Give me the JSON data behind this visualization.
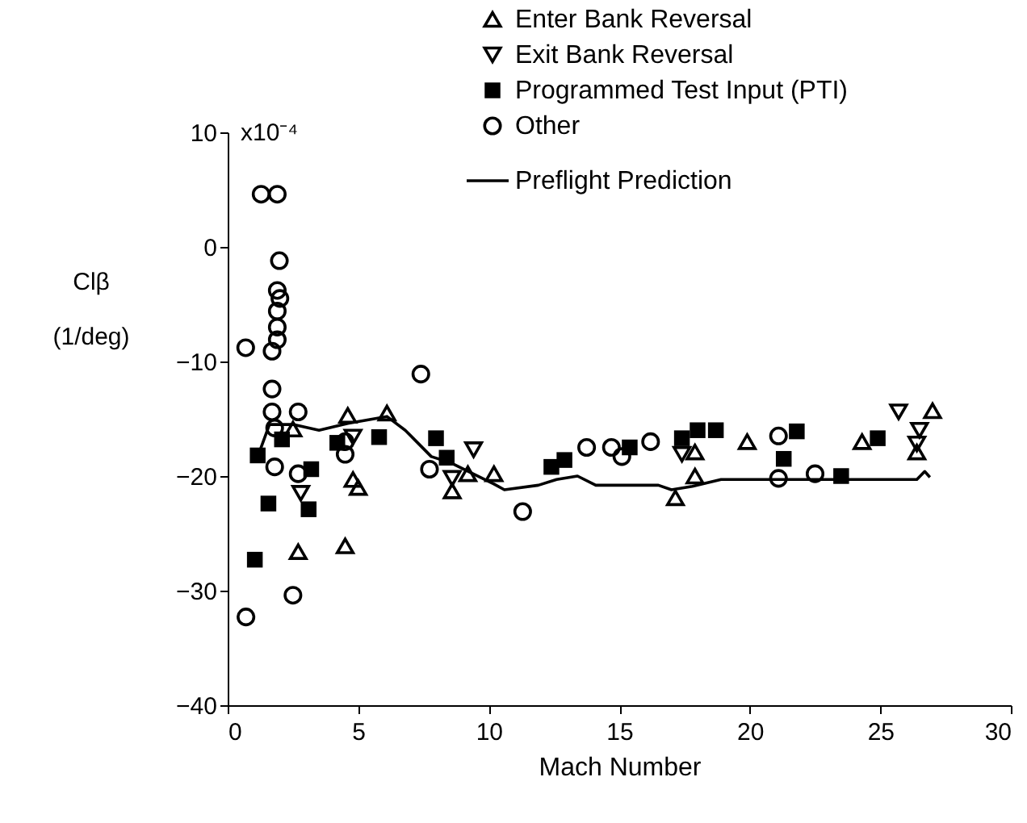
{
  "chart_data": {
    "type": "scatter",
    "xlabel": "Mach Number",
    "ylabel": "Clβ (1/deg)",
    "annotations": [
      "x10⁻⁴"
    ],
    "xlim": [
      0,
      30
    ],
    "xticks": [
      0,
      5,
      10,
      15,
      20,
      25,
      30
    ],
    "ylim": [
      -40,
      10
    ],
    "yticks": [
      -40,
      -30,
      -20,
      -10,
      0,
      10
    ],
    "grid": false,
    "legend": "top right",
    "series": [
      {
        "name": "Enter Bank Reversal",
        "color": "#000000",
        "marker": "triangle",
        "x": [
          2.5,
          2.7,
          4.5,
          4.6,
          6.1,
          4.8,
          5.0,
          8.6,
          9.2,
          10.2,
          17.9,
          17.9,
          17.15,
          19.9,
          24.3,
          27.0,
          26.4
        ],
        "values": [
          -15.9,
          -26.6,
          -26.1,
          -14.7,
          -14.5,
          -20.3,
          -21.0,
          -21.3,
          -19.8,
          -19.8,
          -17.9,
          -20.0,
          -21.9,
          -17.0,
          -17.0,
          -14.3,
          -17.9
        ]
      },
      {
        "name": "Exit Bank Reversal",
        "color": "#000000",
        "marker": "triangle-down",
        "x": [
          2.8,
          4.8,
          9.42,
          8.6,
          17.4,
          25.7,
          26.5,
          26.4
        ],
        "values": [
          -21.5,
          -16.6,
          -17.7,
          -20.2,
          -18.1,
          -14.4,
          -16.0,
          -17.2
        ]
      },
      {
        "name": "Programmed Test Input (PTI)",
        "color": "#000000",
        "marker": "square",
        "x": [
          1.15,
          1.56,
          1.04,
          2.08,
          3.2,
          3.1,
          4.2,
          5.8,
          7.98,
          8.39,
          12.4,
          12.9,
          15.4,
          17.4,
          18.0,
          18.7,
          21.8,
          21.3,
          23.5,
          24.9
        ],
        "values": [
          -18.2,
          -22.4,
          -27.3,
          -16.8,
          -19.4,
          -22.9,
          -17.1,
          -16.6,
          -16.7,
          -18.4,
          -19.2,
          -18.6,
          -17.5,
          -16.7,
          -16.0,
          -16.0,
          -16.1,
          -18.5,
          -20.0,
          -16.7
        ]
      },
      {
        "name": "Other",
        "color": "#000000",
        "marker": "circle",
        "x": [
          1.28,
          1.9,
          1.98,
          0.69,
          1.9,
          2.0,
          1.9,
          1.9,
          1.9,
          1.7,
          1.7,
          1.7,
          1.8,
          2.7,
          1.8,
          2.7,
          4.5,
          4.5,
          2.5,
          0.7,
          7.4,
          7.73,
          11.3,
          13.75,
          14.7,
          15.1,
          16.2,
          21.1,
          21.1,
          22.5
        ],
        "values": [
          4.6,
          4.6,
          -1.2,
          -8.8,
          -3.8,
          -4.5,
          -5.6,
          -7.0,
          -8.1,
          -9.1,
          -12.4,
          -14.4,
          -15.8,
          -14.4,
          -19.2,
          -19.8,
          -18.1,
          -17.0,
          -30.4,
          -32.3,
          -11.1,
          -19.4,
          -23.1,
          -17.5,
          -17.5,
          -18.3,
          -17.0,
          -16.5,
          -20.2,
          -19.8
        ]
      },
      {
        "name": "Preflight Prediction",
        "color": "#000000",
        "type": "line",
        "marker": "none",
        "line_style": "solid",
        "x": [
          1.2,
          1.6,
          2.5,
          3.5,
          4.6,
          6.1,
          6.8,
          7.8,
          8.5,
          10.2,
          10.6,
          11.9,
          12.6,
          13.4,
          14.1,
          16.5,
          17.0,
          17.8,
          18.9,
          26.4,
          26.7,
          26.9
        ],
        "values": [
          -18.0,
          -15.5,
          -15.5,
          -16.0,
          -15.4,
          -14.8,
          -16.0,
          -18.3,
          -18.8,
          -20.7,
          -21.2,
          -20.8,
          -20.3,
          -20.0,
          -20.8,
          -20.8,
          -21.2,
          -20.9,
          -20.3,
          -20.3,
          -19.6,
          -20.1
        ]
      }
    ]
  }
}
